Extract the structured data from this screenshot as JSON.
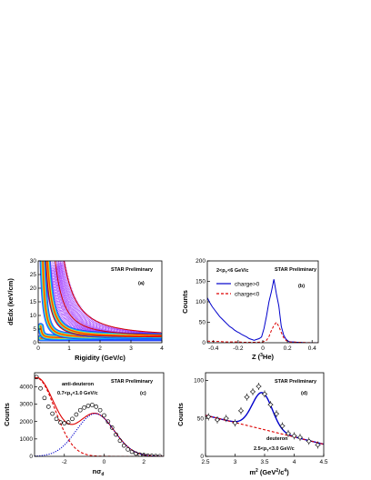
{
  "chart_data": [
    {
      "type": "heatmap",
      "panel_label": "(a)",
      "watermark": "STAR Preliminary",
      "xlabel": "Rigidity (GeV/c)",
      "ylabel": "dEdx (keV/cm)",
      "xlim": [
        0,
        4
      ],
      "ylim": [
        0,
        30
      ],
      "xticks": [
        0,
        1,
        2,
        3,
        4
      ],
      "yticks": [
        0,
        5,
        10,
        15,
        20,
        25,
        30
      ],
      "colors": {
        "band_core": "#ff2a00",
        "band_mid": "#ffee00",
        "band_outer": "#00c8ff",
        "band_edge": "#2040ff",
        "halo": "#9a2cff",
        "curve": "#d40000"
      },
      "bands": [
        {
          "name": "pi",
          "a": 1.0,
          "m": 0.0
        },
        {
          "name": "K",
          "a": 1.1,
          "m": 0.12
        },
        {
          "name": "p",
          "a": 1.2,
          "m": 0.55
        },
        {
          "name": "d",
          "a": 1.35,
          "m": 1.05
        }
      ],
      "curves": [
        {
          "a": 1.2,
          "m": 0.94,
          "zfac": 1
        },
        {
          "a": 1.4,
          "m": 1.88,
          "zfac": 1
        },
        {
          "a": 1.0,
          "m": 1.4,
          "zfac": 4
        }
      ]
    },
    {
      "type": "line",
      "panel_label": "(b)",
      "watermark": "STAR Preliminary",
      "annotation": "2<p_T<6 GeV/c",
      "xlabel": "Z (³He)",
      "ylabel": "Counts",
      "xlim": [
        -0.45,
        0.45
      ],
      "ylim": [
        0,
        200
      ],
      "xticks": [
        -0.4,
        -0.2,
        0,
        0.2,
        0.4
      ],
      "yticks": [
        0,
        50,
        100,
        150,
        200
      ],
      "legend": [
        "charge>0",
        "charge<0"
      ],
      "series": [
        {
          "name": "charge>0",
          "color": "#0000cc",
          "dash": "none",
          "x": [
            -0.45,
            -0.43,
            -0.41,
            -0.39,
            -0.37,
            -0.35,
            -0.33,
            -0.31,
            -0.29,
            -0.27,
            -0.25,
            -0.23,
            -0.21,
            -0.19,
            -0.17,
            -0.15,
            -0.13,
            -0.11,
            -0.09,
            -0.07,
            -0.05,
            -0.03,
            -0.01,
            0.01,
            0.03,
            0.05,
            0.07,
            0.09,
            0.11,
            0.13,
            0.15,
            0.17,
            0.19,
            0.21,
            0.23,
            0.25,
            0.27,
            0.29,
            0.31,
            0.33,
            0.35,
            0.37,
            0.39,
            0.41,
            0.43,
            0.45
          ],
          "y": [
            110,
            98,
            88,
            80,
            72,
            64,
            58,
            52,
            46,
            40,
            36,
            31,
            27,
            24,
            20,
            17,
            14,
            10,
            8,
            6,
            8,
            10,
            14,
            35,
            65,
            100,
            125,
            155,
            120,
            90,
            40,
            18,
            8,
            3,
            2,
            2,
            1,
            1,
            1,
            0,
            0,
            0,
            0,
            0,
            0,
            0
          ]
        },
        {
          "name": "charge<0",
          "color": "#dd0000",
          "dash": "3,2",
          "x": [
            -0.45,
            -0.4,
            -0.35,
            -0.3,
            -0.25,
            -0.2,
            -0.15,
            -0.1,
            -0.05,
            0.0,
            0.03,
            0.05,
            0.07,
            0.09,
            0.11,
            0.13,
            0.15,
            0.17,
            0.19,
            0.22,
            0.3,
            0.4,
            0.45
          ],
          "y": [
            4,
            3,
            3,
            2,
            2,
            2,
            1,
            1,
            1,
            2,
            6,
            15,
            30,
            42,
            50,
            40,
            25,
            12,
            5,
            2,
            1,
            0,
            0
          ]
        }
      ]
    },
    {
      "type": "scatter",
      "panel_label": "(c)",
      "watermark": "STAR Preliminary",
      "annotation1": "anti-deuteron",
      "annotation2": "0.7<p_T<1.0 GeV/c",
      "xlabel": "nσ_d",
      "ylabel": "Counts",
      "xlim": [
        -3.5,
        3.0
      ],
      "ylim": [
        0,
        4800
      ],
      "xticks": [
        -2,
        0,
        2
      ],
      "yticks": [
        0,
        1000,
        2000,
        3000,
        4000
      ],
      "data_points": {
        "x": [
          -3.4,
          -3.2,
          -3.0,
          -2.8,
          -2.6,
          -2.4,
          -2.2,
          -2.0,
          -1.8,
          -1.6,
          -1.4,
          -1.2,
          -1.0,
          -0.8,
          -0.6,
          -0.4,
          -0.2,
          0.0,
          0.2,
          0.4,
          0.6,
          0.8,
          1.0,
          1.2,
          1.4,
          1.6,
          1.8,
          2.0,
          2.2,
          2.4,
          2.6,
          2.8
        ],
        "y": [
          4550,
          3900,
          3350,
          2850,
          2450,
          2150,
          1950,
          1900,
          1950,
          2150,
          2400,
          2650,
          2800,
          2900,
          2950,
          2850,
          2650,
          2350,
          2000,
          1650,
          1250,
          900,
          620,
          400,
          260,
          160,
          100,
          70,
          40,
          25,
          15,
          10
        ]
      },
      "fits": [
        {
          "name": "total",
          "color": "#dd0000",
          "dash": "none"
        },
        {
          "name": "background",
          "color": "#dd0000",
          "dash": "3,2"
        },
        {
          "name": "signal",
          "color": "#0000cc",
          "dash": "1.2,1.4"
        }
      ],
      "signal_model": {
        "amp": 2450,
        "mean": -0.45,
        "sigma": 0.95
      },
      "background_model": {
        "amp": 4500,
        "slope": 0.95,
        "x0": -3.4
      }
    },
    {
      "type": "scatter",
      "panel_label": "(d)",
      "watermark": "STAR Preliminary",
      "annotation1": "deuteron",
      "annotation2": "2.5<p_T<3.0 GeV/c",
      "xlabel": "m² (GeV²/c⁴)",
      "ylabel": "Counts",
      "xlim": [
        2.5,
        4.5
      ],
      "ylim": [
        0,
        110
      ],
      "xticks": [
        2.5,
        3,
        3.5,
        4,
        4.5
      ],
      "yticks": [
        0,
        50,
        100
      ],
      "data_points": {
        "x": [
          2.55,
          2.7,
          2.85,
          3.0,
          3.1,
          3.2,
          3.3,
          3.4,
          3.5,
          3.6,
          3.7,
          3.8,
          3.9,
          4.0,
          4.1,
          4.25,
          4.4
        ],
        "y": [
          52,
          48,
          50,
          44,
          60,
          78,
          85,
          92,
          82,
          68,
          56,
          40,
          30,
          27,
          25,
          20,
          15
        ]
      },
      "fits": [
        {
          "name": "total",
          "color": "#0000cc",
          "dash": "none"
        },
        {
          "name": "background",
          "color": "#dd0000",
          "dash": "3,2"
        }
      ],
      "signal_model": {
        "amp": 48,
        "mean": 3.46,
        "sigma": 0.17
      },
      "background_model": {
        "a": 54,
        "b": -19
      }
    }
  ]
}
